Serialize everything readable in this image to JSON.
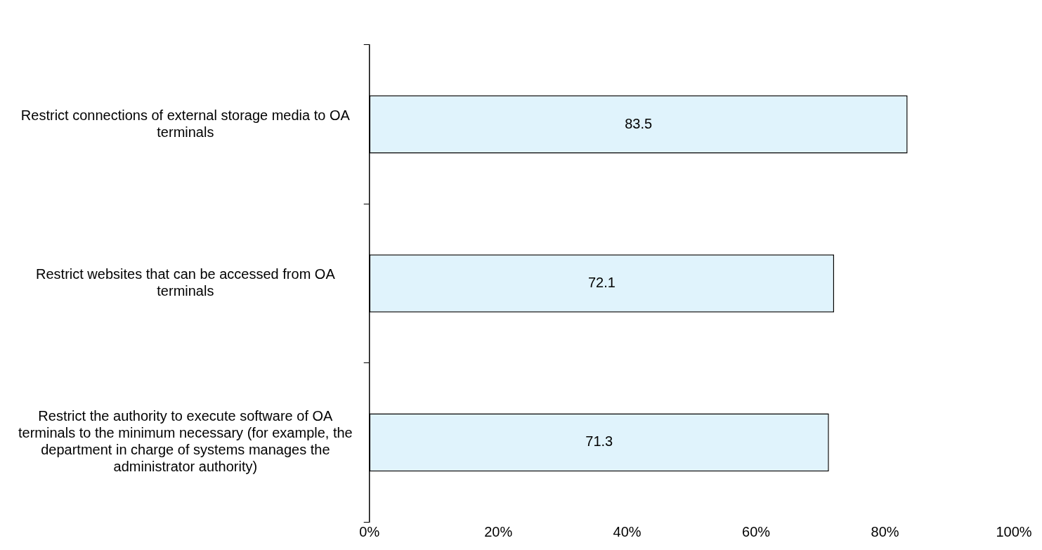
{
  "chart_data": {
    "type": "bar",
    "orientation": "horizontal",
    "categories": [
      "Restrict connections of external storage media to OA terminals",
      "Restrict websites that can be accessed from OA terminals",
      "Restrict the authority to execute software of OA terminals to the minimum necessary (for example, the department in charge of systems manages the administrator authority)"
    ],
    "values": [
      83.5,
      72.1,
      71.3
    ],
    "color": "#e0f3fc",
    "xlim": [
      0,
      100
    ],
    "xticks": [
      {
        "value": 0,
        "label": "0%"
      },
      {
        "value": 20,
        "label": "20%"
      },
      {
        "value": 40,
        "label": "40%"
      },
      {
        "value": 60,
        "label": "60%"
      },
      {
        "value": 80,
        "label": "80%"
      },
      {
        "value": 100,
        "label": "100%"
      }
    ],
    "data_labels": true,
    "grid": false,
    "legend": false
  }
}
